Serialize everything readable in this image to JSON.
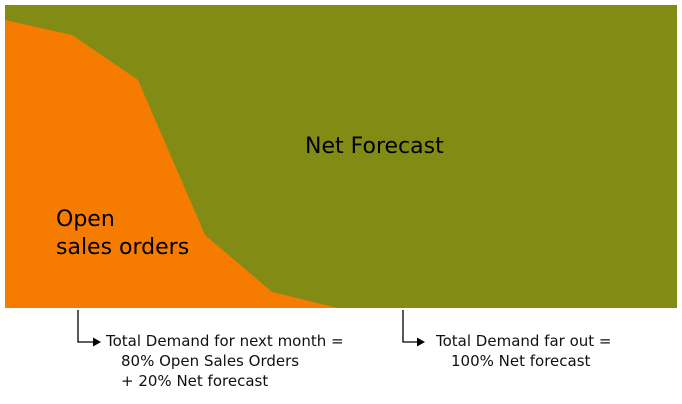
{
  "diagram": {
    "colors": {
      "open_orders_fill": "#F57C00",
      "net_forecast_fill": "#828C14",
      "connector": "#000000"
    },
    "regions": {
      "net_forecast_label": "Net Forecast",
      "open_orders_label_line1": "Open",
      "open_orders_label_line2": "sales orders"
    },
    "annotations": {
      "next_month": {
        "line1": "Total Demand for next month =",
        "line2": "80% Open Sales Orders",
        "line3": "+ 20% Net forecast"
      },
      "far_out": {
        "line1": "Total Demand far out =",
        "line2": "100% Net forecast"
      }
    }
  }
}
